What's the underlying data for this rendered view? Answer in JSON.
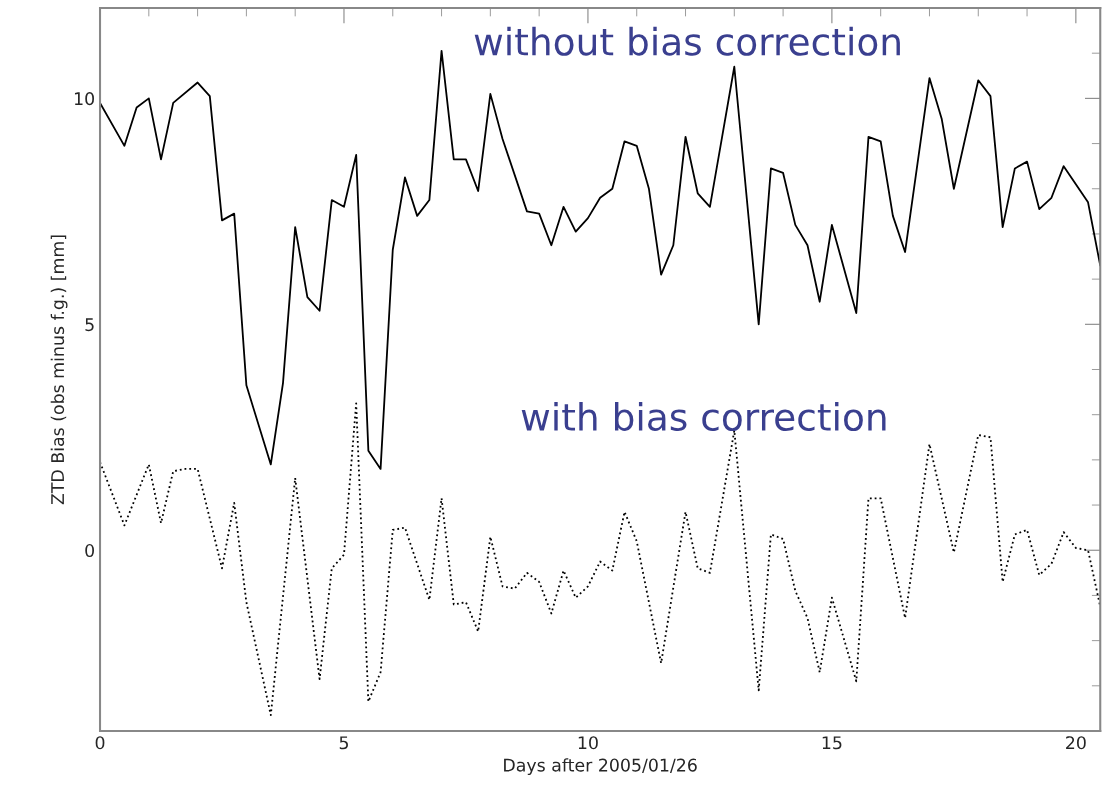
{
  "chart_data": {
    "type": "line",
    "xlabel": "Days after 2005/01/26",
    "ylabel": "ZTD Bias (obs minus f.g.) [mm]",
    "xlim": [
      0,
      20.5
    ],
    "ylim": [
      -4,
      12
    ],
    "xticks": [
      0,
      {
        "value": 1,
        "label": null
      },
      {
        "value": 2,
        "label": null
      },
      {
        "value": 3,
        "label": null
      },
      {
        "value": 4,
        "label": null
      },
      5,
      {
        "value": 6,
        "label": null
      },
      {
        "value": 7,
        "label": null
      },
      {
        "value": 8,
        "label": null
      },
      {
        "value": 9,
        "label": null
      },
      10,
      {
        "value": 11,
        "label": null
      },
      {
        "value": 12,
        "label": null
      },
      {
        "value": 13,
        "label": null
      },
      {
        "value": 14,
        "label": null
      },
      15,
      {
        "value": 16,
        "label": null
      },
      {
        "value": 17,
        "label": null
      },
      {
        "value": 18,
        "label": null
      },
      {
        "value": 19,
        "label": null
      },
      20
    ],
    "yticks": [
      {
        "value": -3,
        "label": null
      },
      {
        "value": -2,
        "label": null
      },
      {
        "value": -1,
        "label": null
      },
      0,
      {
        "value": 1,
        "label": null
      },
      {
        "value": 2,
        "label": null
      },
      {
        "value": 3,
        "label": null
      },
      {
        "value": 4,
        "label": null
      },
      5,
      {
        "value": 6,
        "label": null
      },
      {
        "value": 7,
        "label": null
      },
      {
        "value": 8,
        "label": null
      },
      {
        "value": 9,
        "label": null
      },
      10,
      {
        "value": 11,
        "label": null
      }
    ],
    "grid": false,
    "legend": false,
    "marker": "none",
    "series": [
      {
        "name": "without bias correction",
        "color": "#000000",
        "line_style": "solid",
        "x": [
          0,
          0.5,
          0.75,
          1,
          1.25,
          1.5,
          2,
          2.25,
          2.5,
          2.75,
          3,
          3.25,
          3.5,
          3.75,
          4,
          4.25,
          4.5,
          4.75,
          5,
          5.25,
          5.5,
          5.75,
          6,
          6.25,
          6.5,
          6.75,
          7,
          7.25,
          7.5,
          7.75,
          8,
          8.25,
          8.75,
          9,
          9.25,
          9.5,
          9.75,
          10,
          10.25,
          10.5,
          10.75,
          11,
          11.25,
          11.5,
          11.75,
          12,
          12.25,
          12.5,
          12.75,
          13,
          13.5,
          13.75,
          14,
          14.25,
          14.5,
          14.75,
          15,
          15.5,
          15.75,
          16,
          16.25,
          16.5,
          17,
          17.25,
          17.5,
          18,
          18.25,
          18.5,
          18.75,
          19,
          19.25,
          19.5,
          19.75,
          20.25,
          20.5
        ],
        "values": [
          9.9,
          8.95,
          9.8,
          10.0,
          8.65,
          9.9,
          10.35,
          10.05,
          7.3,
          7.45,
          3.65,
          null,
          1.9,
          3.7,
          7.15,
          5.6,
          5.3,
          7.75,
          7.6,
          8.75,
          2.2,
          1.8,
          6.65,
          8.25,
          7.4,
          7.75,
          11.05,
          8.65,
          8.65,
          7.95,
          10.1,
          9.1,
          7.5,
          7.45,
          6.75,
          7.6,
          7.05,
          7.35,
          7.8,
          8.0,
          9.05,
          8.95,
          8.0,
          6.1,
          6.75,
          9.15,
          7.9,
          7.6,
          9.15,
          10.7,
          5.0,
          8.45,
          8.35,
          7.2,
          6.75,
          5.5,
          7.2,
          5.25,
          9.15,
          9.05,
          7.4,
          6.6,
          10.45,
          9.55,
          8.0,
          10.4,
          10.05,
          7.15,
          8.45,
          8.6,
          7.55,
          7.8,
          8.5,
          7.7,
          6.3
        ]
      },
      {
        "name": "with bias correction",
        "color": "#000000",
        "line_style": "dotted",
        "x": [
          0,
          0.5,
          1,
          1.25,
          1.5,
          1.75,
          2,
          2.5,
          2.75,
          3,
          3.25,
          3.5,
          4,
          4.5,
          4.75,
          5,
          5.25,
          5.5,
          5.75,
          6,
          6.25,
          6.75,
          7,
          7.25,
          7.5,
          7.75,
          8,
          8.25,
          8.5,
          8.75,
          9,
          9.25,
          9.5,
          9.75,
          10,
          10.25,
          10.5,
          10.75,
          11,
          11.5,
          12,
          12.25,
          12.5,
          13,
          13.5,
          13.75,
          14,
          14.25,
          14.5,
          14.75,
          15,
          15.5,
          15.75,
          16,
          16.5,
          17,
          17.5,
          18,
          18.25,
          18.5,
          18.75,
          19,
          19.25,
          19.5,
          19.75,
          20,
          20.25,
          20.5
        ],
        "values": [
          1.95,
          0.55,
          1.9,
          0.6,
          1.75,
          1.8,
          1.8,
          -0.4,
          1.05,
          -1.15,
          null,
          -3.65,
          1.6,
          -2.85,
          -0.4,
          -0.1,
          3.25,
          -3.35,
          -2.7,
          0.45,
          0.5,
          -1.1,
          1.15,
          -1.2,
          -1.15,
          -1.8,
          0.3,
          -0.8,
          -0.85,
          -0.5,
          -0.7,
          -1.4,
          -0.45,
          -1.05,
          -0.8,
          -0.25,
          -0.45,
          0.85,
          0.2,
          -2.5,
          0.85,
          -0.4,
          -0.5,
          2.65,
          -3.1,
          0.35,
          0.25,
          -0.9,
          -1.5,
          -2.7,
          -1.05,
          -2.9,
          1.15,
          1.15,
          -1.5,
          2.35,
          -0.05,
          2.55,
          2.5,
          -0.7,
          0.35,
          0.45,
          -0.55,
          -0.3,
          0.4,
          0.05,
          0.0,
          -1.25
        ]
      }
    ]
  }
}
